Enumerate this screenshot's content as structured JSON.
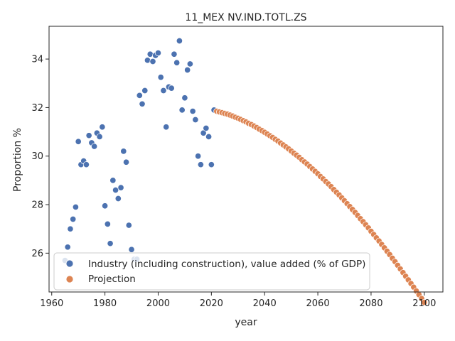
{
  "chart_data": {
    "type": "scatter",
    "title": "11_MEX NV.IND.TOTL.ZS",
    "xlabel": "year",
    "ylabel": "Proportion %",
    "xlim": [
      1959,
      2107
    ],
    "ylim": [
      24.4,
      35.35
    ],
    "xticks": [
      1960,
      1980,
      2000,
      2020,
      2040,
      2060,
      2080,
      2100
    ],
    "yticks": [
      26,
      28,
      30,
      32,
      34
    ],
    "grid": false,
    "legend_position": "lower-left",
    "series": [
      {
        "name": "Industry (including construction), value added (% of GDP)",
        "color": "#4c72b0",
        "points": [
          [
            1965,
            25.7
          ],
          [
            1966,
            26.25
          ],
          [
            1967,
            27.0
          ],
          [
            1968,
            27.4
          ],
          [
            1969,
            27.9
          ],
          [
            1970,
            30.6
          ],
          [
            1971,
            29.65
          ],
          [
            1972,
            29.8
          ],
          [
            1973,
            29.65
          ],
          [
            1974,
            30.85
          ],
          [
            1975,
            30.55
          ],
          [
            1976,
            30.4
          ],
          [
            1977,
            30.95
          ],
          [
            1978,
            30.8
          ],
          [
            1979,
            31.2
          ],
          [
            1980,
            27.95
          ],
          [
            1981,
            27.2
          ],
          [
            1982,
            26.4
          ],
          [
            1983,
            29.0
          ],
          [
            1984,
            28.6
          ],
          [
            1985,
            28.25
          ],
          [
            1986,
            28.7
          ],
          [
            1987,
            30.2
          ],
          [
            1988,
            29.75
          ],
          [
            1989,
            27.15
          ],
          [
            1990,
            26.15
          ],
          [
            1991,
            25.75
          ],
          [
            1992,
            25.75
          ],
          [
            1993,
            32.5
          ],
          [
            1994,
            32.15
          ],
          [
            1995,
            32.7
          ],
          [
            1996,
            33.95
          ],
          [
            1997,
            34.2
          ],
          [
            1998,
            33.9
          ],
          [
            1999,
            34.15
          ],
          [
            2000,
            34.25
          ],
          [
            2001,
            33.25
          ],
          [
            2002,
            32.7
          ],
          [
            2003,
            31.2
          ],
          [
            2004,
            32.85
          ],
          [
            2005,
            32.8
          ],
          [
            2006,
            34.2
          ],
          [
            2007,
            33.85
          ],
          [
            2008,
            34.75
          ],
          [
            2009,
            31.9
          ],
          [
            2010,
            32.4
          ],
          [
            2011,
            33.55
          ],
          [
            2012,
            33.8
          ],
          [
            2013,
            31.85
          ],
          [
            2014,
            31.5
          ],
          [
            2015,
            30.0
          ],
          [
            2016,
            29.65
          ],
          [
            2017,
            30.95
          ],
          [
            2018,
            31.15
          ],
          [
            2019,
            30.8
          ],
          [
            2020,
            29.65
          ],
          [
            2021,
            31.9
          ]
        ]
      },
      {
        "name": "Projection",
        "color": "#dd8452",
        "points": [
          [
            2022,
            31.85
          ],
          [
            2023,
            31.82
          ],
          [
            2024,
            31.79
          ],
          [
            2025,
            31.76
          ],
          [
            2026,
            31.73
          ],
          [
            2027,
            31.69
          ],
          [
            2028,
            31.65
          ],
          [
            2029,
            31.6
          ],
          [
            2030,
            31.56
          ],
          [
            2031,
            31.51
          ],
          [
            2032,
            31.46
          ],
          [
            2033,
            31.41
          ],
          [
            2034,
            31.35
          ],
          [
            2035,
            31.3
          ],
          [
            2036,
            31.24
          ],
          [
            2037,
            31.18
          ],
          [
            2038,
            31.11
          ],
          [
            2039,
            31.05
          ],
          [
            2040,
            30.98
          ],
          [
            2041,
            30.91
          ],
          [
            2042,
            30.84
          ],
          [
            2043,
            30.77
          ],
          [
            2044,
            30.69
          ],
          [
            2045,
            30.62
          ],
          [
            2046,
            30.54
          ],
          [
            2047,
            30.46
          ],
          [
            2048,
            30.38
          ],
          [
            2049,
            30.3
          ],
          [
            2050,
            30.21
          ],
          [
            2051,
            30.12
          ],
          [
            2052,
            30.04
          ],
          [
            2053,
            29.95
          ],
          [
            2054,
            29.85
          ],
          [
            2055,
            29.76
          ],
          [
            2056,
            29.67
          ],
          [
            2057,
            29.57
          ],
          [
            2058,
            29.47
          ],
          [
            2059,
            29.37
          ],
          [
            2060,
            29.27
          ],
          [
            2061,
            29.16
          ],
          [
            2062,
            29.06
          ],
          [
            2063,
            28.95
          ],
          [
            2064,
            28.85
          ],
          [
            2065,
            28.74
          ],
          [
            2066,
            28.62
          ],
          [
            2067,
            28.51
          ],
          [
            2068,
            28.4
          ],
          [
            2069,
            28.28
          ],
          [
            2070,
            28.16
          ],
          [
            2071,
            28.04
          ],
          [
            2072,
            27.92
          ],
          [
            2073,
            27.8
          ],
          [
            2074,
            27.68
          ],
          [
            2075,
            27.55
          ],
          [
            2076,
            27.42
          ],
          [
            2077,
            27.3
          ],
          [
            2078,
            27.17
          ],
          [
            2079,
            27.04
          ],
          [
            2080,
            26.9
          ],
          [
            2081,
            26.77
          ],
          [
            2082,
            26.63
          ],
          [
            2083,
            26.5
          ],
          [
            2084,
            26.36
          ],
          [
            2085,
            26.22
          ],
          [
            2086,
            26.08
          ],
          [
            2087,
            25.94
          ],
          [
            2088,
            25.79
          ],
          [
            2089,
            25.65
          ],
          [
            2090,
            25.5
          ],
          [
            2091,
            25.35
          ],
          [
            2092,
            25.2
          ],
          [
            2093,
            25.05
          ],
          [
            2094,
            24.9
          ],
          [
            2095,
            24.75
          ],
          [
            2096,
            24.6
          ],
          [
            2097,
            24.44
          ],
          [
            2098,
            24.29
          ],
          [
            2099,
            24.13
          ],
          [
            2100,
            23.97
          ]
        ]
      }
    ]
  }
}
